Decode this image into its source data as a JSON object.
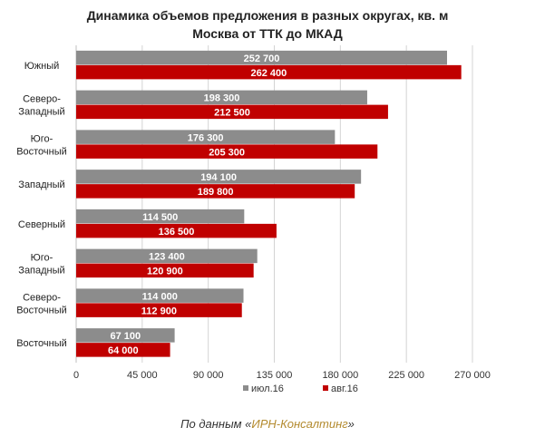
{
  "title_line1": "Динамика объемов предложения в разных округах, кв. м",
  "title_line2": "Москва от ТТК до МКАД",
  "source": {
    "prefix": "По данным «",
    "brand": "ИРН-Консалтинг",
    "suffix": "»"
  },
  "chart_data": {
    "type": "bar",
    "orientation": "horizontal",
    "categories": [
      "Южный",
      "Северо-Западный",
      "Юго-Восточный",
      "Западный",
      "Северный",
      "Юго-Западный",
      "Северо-Восточный",
      "Восточный"
    ],
    "category_lines": [
      [
        "Южный"
      ],
      [
        "Северо-",
        "Западный"
      ],
      [
        "Юго-",
        "Восточный"
      ],
      [
        "Западный"
      ],
      [
        "Северный"
      ],
      [
        "Юго-",
        "Западный"
      ],
      [
        "Северо-",
        "Восточный"
      ],
      [
        "Восточный"
      ]
    ],
    "series": [
      {
        "name": "июл.16",
        "color": "#8c8c8c",
        "values": [
          252700,
          198300,
          176300,
          194100,
          114500,
          123400,
          114000,
          67100
        ]
      },
      {
        "name": "авг.16",
        "color": "#c00000",
        "values": [
          262400,
          212500,
          205300,
          189800,
          136500,
          120900,
          112900,
          64000
        ]
      }
    ],
    "data_labels": [
      [
        "252 700",
        "198 300",
        "176 300",
        "194 100",
        "114 500",
        "123 400",
        "114 000",
        "67 100"
      ],
      [
        "262 400",
        "212 500",
        "205 300",
        "189 800",
        "136 500",
        "120 900",
        "112 900",
        "64 000"
      ]
    ],
    "xlim": [
      0,
      270000
    ],
    "x_ticks": [
      0,
      45000,
      90000,
      135000,
      180000,
      225000,
      270000
    ],
    "x_tick_labels": [
      "0",
      "45 000",
      "90 000",
      "135 000",
      "180 000",
      "225 000",
      "270 000"
    ],
    "grid": true,
    "legend_position": "bottom"
  }
}
